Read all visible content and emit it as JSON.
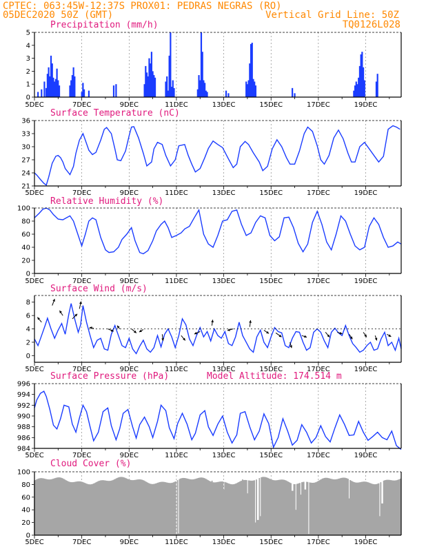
{
  "header": {
    "line1_left": "CPTEC:  063:45W-12:37S  PROX01: PEDRAS NEGRAS (RO)",
    "line2_left": "05DEC2020 50Z (GMT)",
    "line2_right": "Vertical Grid Line: 50Z",
    "line3_right": "TQ0126L028"
  },
  "x_tick_labels": [
    "5DEC",
    "7DEC",
    "9DEC",
    "11DEC",
    "13DEC",
    "15DEC",
    "17DEC",
    "19DEC"
  ],
  "x_range_days": [
    0,
    15.5
  ],
  "colors": {
    "header": "#ff8800",
    "title": "#e0197d",
    "series": "#1a3cff",
    "cloud": "#a6a6a6"
  },
  "chart_data": [
    {
      "id": "precip",
      "type": "bar",
      "title": "Precipitation (mm/h)",
      "yticks": [
        0,
        1,
        2,
        3,
        4,
        5
      ],
      "ylim": [
        0,
        5
      ],
      "bars": [
        [
          0.15,
          0.4
        ],
        [
          0.3,
          0.6
        ],
        [
          0.42,
          1.2
        ],
        [
          0.5,
          0.7
        ],
        [
          0.55,
          1.8
        ],
        [
          0.6,
          2.3
        ],
        [
          0.65,
          1.6
        ],
        [
          0.7,
          3.2
        ],
        [
          0.75,
          2.6
        ],
        [
          0.8,
          1.5
        ],
        [
          0.85,
          1.2
        ],
        [
          0.9,
          1.4
        ],
        [
          0.95,
          2.2
        ],
        [
          1.0,
          1.3
        ],
        [
          1.05,
          0.9
        ],
        [
          1.5,
          0.9
        ],
        [
          1.55,
          1.3
        ],
        [
          1.6,
          1.7
        ],
        [
          1.65,
          2.3
        ],
        [
          1.7,
          1.6
        ],
        [
          2.0,
          0.4
        ],
        [
          2.05,
          1.1
        ],
        [
          2.1,
          0.6
        ],
        [
          2.3,
          0.5
        ],
        [
          3.35,
          0.9
        ],
        [
          3.45,
          1.0
        ],
        [
          4.65,
          1.0
        ],
        [
          4.7,
          2.4
        ],
        [
          4.75,
          1.9
        ],
        [
          4.8,
          1.6
        ],
        [
          4.85,
          3.0
        ],
        [
          4.9,
          2.6
        ],
        [
          4.95,
          3.5
        ],
        [
          5.0,
          2.0
        ],
        [
          5.05,
          1.7
        ],
        [
          5.1,
          1.5
        ],
        [
          5.55,
          1.2
        ],
        [
          5.6,
          1.6
        ],
        [
          5.65,
          0.5
        ],
        [
          5.7,
          3.2
        ],
        [
          5.75,
          5.0
        ],
        [
          5.8,
          0.8
        ],
        [
          5.85,
          1.3
        ],
        [
          5.9,
          0.7
        ],
        [
          6.9,
          0.6
        ],
        [
          6.95,
          1.7
        ],
        [
          7.0,
          1.3
        ],
        [
          7.05,
          5.0
        ],
        [
          7.1,
          3.5
        ],
        [
          7.15,
          1.3
        ],
        [
          7.2,
          1.1
        ],
        [
          7.25,
          0.5
        ],
        [
          7.3,
          0.4
        ],
        [
          8.1,
          0.5
        ],
        [
          8.2,
          0.3
        ],
        [
          8.95,
          1.2
        ],
        [
          9.0,
          1.0
        ],
        [
          9.05,
          1.3
        ],
        [
          9.1,
          2.6
        ],
        [
          9.15,
          4.1
        ],
        [
          9.2,
          4.2
        ],
        [
          9.25,
          1.4
        ],
        [
          9.3,
          1.2
        ],
        [
          9.35,
          0.9
        ],
        [
          10.9,
          0.7
        ],
        [
          11.0,
          0.3
        ],
        [
          13.5,
          0.5
        ],
        [
          13.55,
          0.9
        ],
        [
          13.6,
          1.2
        ],
        [
          13.65,
          1.0
        ],
        [
          13.7,
          1.5
        ],
        [
          13.75,
          2.4
        ],
        [
          13.8,
          3.3
        ],
        [
          13.85,
          3.5
        ],
        [
          13.9,
          2.3
        ],
        [
          13.95,
          1.3
        ],
        [
          14.45,
          1.2
        ],
        [
          14.5,
          1.8
        ]
      ]
    },
    {
      "id": "temp",
      "type": "line",
      "title": "Surface Temperature (nC)",
      "yticks": [
        21,
        24,
        27,
        30,
        33,
        36
      ],
      "ylim": [
        21,
        36
      ],
      "x": [
        0,
        0.1,
        0.25,
        0.4,
        0.5,
        0.6,
        0.75,
        0.9,
        1.0,
        1.1,
        1.2,
        1.3,
        1.5,
        1.65,
        1.75,
        1.9,
        2.05,
        2.15,
        2.3,
        2.45,
        2.6,
        2.8,
        2.95,
        3.05,
        3.25,
        3.4,
        3.5,
        3.65,
        3.85,
        4.0,
        4.1,
        4.2,
        4.4,
        4.6,
        4.75,
        4.95,
        5.05,
        5.2,
        5.4,
        5.55,
        5.75,
        5.95,
        6.1,
        6.35,
        6.5,
        6.65,
        6.8,
        7.0,
        7.2,
        7.35,
        7.55,
        7.75,
        7.95,
        8.2,
        8.4,
        8.55,
        8.7,
        8.9,
        9.05,
        9.25,
        9.5,
        9.65,
        9.85,
        10.05,
        10.25,
        10.45,
        10.65,
        10.8,
        11.0,
        11.2,
        11.4,
        11.55,
        11.75,
        11.95,
        12.1,
        12.25,
        12.45,
        12.65,
        12.85,
        13.05,
        13.25,
        13.4,
        13.55,
        13.75,
        13.95,
        14.15,
        14.35,
        14.55,
        14.75,
        14.95,
        15.15,
        15.3,
        15.45
      ],
      "y": [
        24.0,
        23.5,
        22.5,
        21.6,
        21.2,
        23.0,
        26.2,
        27.8,
        28.0,
        27.5,
        26.5,
        25.0,
        23.6,
        25.5,
        28.5,
        31.5,
        33.0,
        31.5,
        29.2,
        28.2,
        28.7,
        31.5,
        34.0,
        34.4,
        33.0,
        29.5,
        27.0,
        26.8,
        29.0,
        32.5,
        34.5,
        34.6,
        32.0,
        28.5,
        25.6,
        26.5,
        29.5,
        31.0,
        30.5,
        28.0,
        25.6,
        27.0,
        30.2,
        30.5,
        28.0,
        26.0,
        24.2,
        25.0,
        27.5,
        29.6,
        31.3,
        30.5,
        29.8,
        27.2,
        25.2,
        26.0,
        30.0,
        31.2,
        30.5,
        28.6,
        26.5,
        24.5,
        25.5,
        29.5,
        31.6,
        30.0,
        27.5,
        26.0,
        26.0,
        29.0,
        33.0,
        34.5,
        33.5,
        30.2,
        27.0,
        26.0,
        28.0,
        32.0,
        33.8,
        31.8,
        28.5,
        26.5,
        26.5,
        30.0,
        31.0,
        29.5,
        28.0,
        26.5,
        27.8,
        34.0,
        34.8,
        34.5,
        34.0
      ]
    },
    {
      "id": "rh",
      "type": "line",
      "title": "Relative Humidity (%)",
      "yticks": [
        0,
        20,
        40,
        60,
        80,
        100
      ],
      "ylim": [
        0,
        100
      ],
      "x": [
        0,
        0.2,
        0.35,
        0.5,
        0.65,
        0.8,
        1.0,
        1.2,
        1.35,
        1.5,
        1.65,
        1.85,
        2.0,
        2.15,
        2.3,
        2.45,
        2.6,
        2.8,
        3.0,
        3.15,
        3.35,
        3.55,
        3.7,
        3.9,
        4.1,
        4.25,
        4.45,
        4.6,
        4.8,
        5.0,
        5.15,
        5.35,
        5.5,
        5.65,
        5.8,
        6.0,
        6.2,
        6.35,
        6.55,
        6.75,
        6.95,
        7.15,
        7.35,
        7.55,
        7.75,
        7.95,
        8.15,
        8.35,
        8.55,
        8.75,
        8.95,
        9.15,
        9.35,
        9.55,
        9.75,
        9.95,
        10.15,
        10.35,
        10.55,
        10.75,
        10.95,
        11.15,
        11.35,
        11.55,
        11.75,
        11.95,
        12.15,
        12.35,
        12.55,
        12.75,
        12.95,
        13.15,
        13.35,
        13.55,
        13.75,
        13.95,
        14.15,
        14.35,
        14.55,
        14.75,
        14.95,
        15.15,
        15.35,
        15.5
      ],
      "y": [
        85,
        92,
        98,
        100,
        97,
        90,
        83,
        82,
        85,
        88,
        80,
        58,
        42,
        60,
        80,
        85,
        82,
        55,
        36,
        32,
        33,
        40,
        52,
        60,
        70,
        50,
        32,
        30,
        35,
        50,
        65,
        75,
        80,
        70,
        55,
        58,
        62,
        68,
        72,
        85,
        97,
        60,
        45,
        40,
        58,
        80,
        82,
        95,
        97,
        75,
        58,
        62,
        78,
        88,
        85,
        58,
        50,
        56,
        85,
        86,
        70,
        46,
        33,
        45,
        78,
        95,
        75,
        48,
        36,
        60,
        88,
        80,
        60,
        42,
        36,
        40,
        72,
        85,
        75,
        55,
        40,
        42,
        48,
        45
      ]
    },
    {
      "id": "wind",
      "type": "line",
      "title": "Surface Wind (m/s)",
      "yticks": [
        0,
        2,
        4,
        6,
        8
      ],
      "ylim": [
        -1,
        9
      ],
      "x": [
        0,
        0.15,
        0.3,
        0.45,
        0.55,
        0.7,
        0.85,
        1.0,
        1.15,
        1.3,
        1.45,
        1.55,
        1.7,
        1.85,
        1.95,
        2.05,
        2.2,
        2.35,
        2.5,
        2.65,
        2.8,
        2.95,
        3.1,
        3.25,
        3.4,
        3.55,
        3.7,
        3.85,
        4.0,
        4.15,
        4.3,
        4.45,
        4.6,
        4.75,
        4.9,
        5.05,
        5.2,
        5.35,
        5.5,
        5.65,
        5.8,
        5.95,
        6.1,
        6.25,
        6.4,
        6.55,
        6.7,
        6.85,
        7.0,
        7.15,
        7.3,
        7.45,
        7.6,
        7.75,
        7.9,
        8.05,
        8.2,
        8.35,
        8.5,
        8.65,
        8.8,
        8.95,
        9.1,
        9.25,
        9.4,
        9.55,
        9.7,
        9.85,
        10.0,
        10.15,
        10.3,
        10.45,
        10.6,
        10.75,
        10.9,
        11.05,
        11.2,
        11.35,
        11.5,
        11.65,
        11.8,
        11.95,
        12.1,
        12.25,
        12.4,
        12.55,
        12.7,
        12.85,
        13.0,
        13.15,
        13.3,
        13.45,
        13.6,
        13.75,
        13.9,
        14.05,
        14.2,
        14.35,
        14.5,
        14.65,
        14.8,
        14.95,
        15.1,
        15.25,
        15.4,
        15.5
      ],
      "y": [
        2.5,
        1.5,
        3.0,
        4.5,
        5.6,
        4.0,
        2.6,
        3.8,
        4.8,
        3.2,
        6.2,
        7.8,
        5.5,
        3.5,
        4.6,
        7.5,
        5.0,
        3.0,
        1.2,
        2.3,
        2.6,
        1.0,
        0.8,
        3.2,
        4.5,
        3.0,
        1.5,
        1.2,
        2.6,
        1.0,
        0.3,
        1.4,
        2.3,
        1.0,
        0.5,
        1.2,
        3.0,
        1.3,
        3.2,
        4.0,
        2.8,
        1.2,
        3.0,
        5.5,
        4.6,
        2.5,
        1.5,
        3.0,
        4.2,
        2.8,
        3.6,
        2.2,
        4.0,
        3.0,
        2.6,
        3.6,
        1.8,
        1.5,
        2.8,
        5.0,
        3.0,
        2.0,
        1.0,
        0.5,
        2.8,
        3.8,
        2.0,
        1.2,
        2.8,
        4.2,
        3.6,
        3.4,
        1.5,
        1.2,
        2.6,
        3.6,
        3.5,
        2.0,
        0.8,
        1.2,
        3.5,
        4.0,
        3.5,
        2.2,
        1.2,
        3.5,
        4.1,
        3.4,
        3.0,
        4.5,
        3.0,
        1.8,
        1.2,
        0.5,
        0.8,
        1.5,
        2.0,
        0.8,
        1.0,
        2.5,
        3.5,
        1.5,
        2.0,
        0.8,
        2.6,
        1.0
      ]
    },
    {
      "id": "pres",
      "type": "line",
      "title": "Surface Pressure (hPa)",
      "title2": "Model Altitude: 174.514 m",
      "yticks": [
        984,
        986,
        988,
        990,
        992,
        994,
        996
      ],
      "ylim": [
        984,
        996
      ],
      "x": [
        0,
        0.1,
        0.25,
        0.4,
        0.5,
        0.65,
        0.8,
        0.95,
        1.1,
        1.25,
        1.45,
        1.6,
        1.75,
        1.9,
        2.05,
        2.2,
        2.35,
        2.5,
        2.7,
        2.9,
        3.1,
        3.25,
        3.45,
        3.6,
        3.75,
        3.95,
        4.15,
        4.3,
        4.45,
        4.65,
        4.85,
        5.0,
        5.2,
        5.35,
        5.55,
        5.7,
        5.9,
        6.05,
        6.25,
        6.45,
        6.65,
        6.8,
        7.0,
        7.2,
        7.35,
        7.55,
        7.75,
        7.95,
        8.15,
        8.35,
        8.55,
        8.7,
        8.9,
        9.1,
        9.3,
        9.5,
        9.7,
        9.9,
        10.1,
        10.3,
        10.5,
        10.7,
        10.9,
        11.1,
        11.3,
        11.5,
        11.7,
        11.9,
        12.1,
        12.3,
        12.5,
        12.7,
        12.9,
        13.1,
        13.3,
        13.5,
        13.7,
        13.9,
        14.1,
        14.3,
        14.5,
        14.7,
        14.9,
        15.1,
        15.3,
        15.5
      ],
      "y": [
        991.5,
        993.0,
        994.2,
        994.6,
        993.6,
        991.2,
        988.3,
        987.6,
        989.5,
        992.0,
        991.7,
        988.5,
        987.0,
        989.6,
        992.0,
        990.8,
        988.0,
        985.4,
        987.0,
        990.8,
        991.5,
        988.2,
        985.6,
        987.6,
        990.5,
        991.2,
        988.0,
        985.9,
        988.4,
        989.8,
        988.0,
        986.0,
        989.0,
        992.0,
        991.0,
        987.8,
        985.8,
        988.6,
        990.5,
        988.5,
        985.6,
        986.8,
        990.2,
        991.0,
        988.0,
        986.4,
        988.5,
        990.0,
        987.0,
        985.0,
        986.5,
        990.5,
        990.8,
        988.0,
        985.6,
        987.2,
        990.4,
        988.6,
        984.2,
        986.0,
        989.5,
        987.2,
        984.6,
        985.5,
        988.4,
        987.0,
        985.0,
        986.0,
        988.2,
        986.2,
        985.2,
        987.8,
        990.2,
        988.5,
        986.4,
        986.5,
        989.0,
        987.0,
        985.5,
        986.2,
        987.0,
        986.0,
        985.6,
        987.2,
        984.5,
        983.8
      ]
    },
    {
      "id": "cloud",
      "type": "bar",
      "title": "Cloud Cover (%)",
      "yticks": [
        0,
        20,
        40,
        60,
        80,
        100
      ],
      "ylim": [
        0,
        100
      ],
      "dips": [
        [
          6.0,
          2
        ],
        [
          6.08,
          3
        ],
        [
          7.5,
          86
        ],
        [
          8.0,
          72
        ],
        [
          8.8,
          88
        ],
        [
          9.0,
          66
        ],
        [
          9.35,
          20
        ],
        [
          9.45,
          24
        ],
        [
          9.55,
          30
        ],
        [
          10.9,
          70
        ],
        [
          11.05,
          40
        ],
        [
          11.25,
          64
        ],
        [
          11.45,
          72
        ],
        [
          11.6,
          2
        ],
        [
          13.3,
          58
        ],
        [
          14.6,
          30
        ],
        [
          14.7,
          50
        ]
      ]
    }
  ]
}
